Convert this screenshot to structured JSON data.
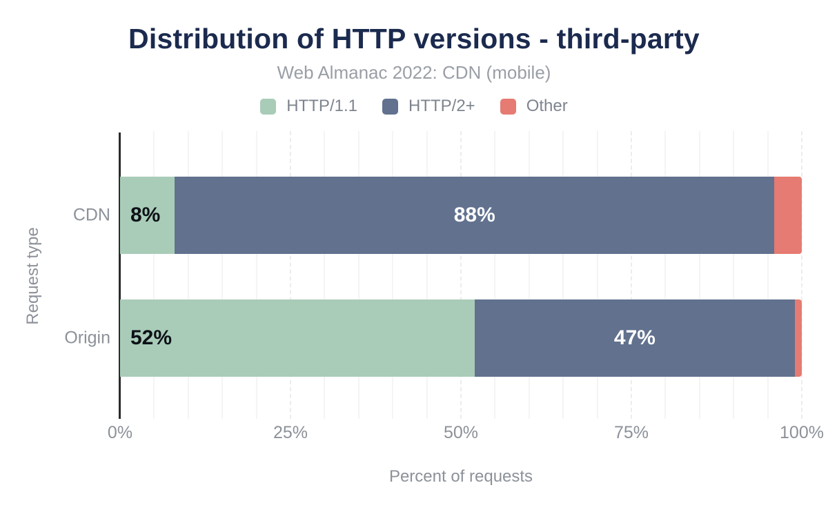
{
  "header": {
    "title": "Distribution of HTTP versions - third-party",
    "subtitle": "Web Almanac 2022: CDN (mobile)"
  },
  "legend": {
    "items": [
      {
        "label": "HTTP/1.1",
        "color": "#a9ccb8"
      },
      {
        "label": "HTTP/2+",
        "color": "#61718e"
      },
      {
        "label": "Other",
        "color": "#e57b72"
      }
    ]
  },
  "chart_data": {
    "type": "bar",
    "orientation": "horizontal",
    "stacked": true,
    "title": "Distribution of HTTP versions - third-party",
    "subtitle": "Web Almanac 2022: CDN (mobile)",
    "xlabel": "Percent of requests",
    "ylabel": "Request type",
    "xlim": [
      0,
      100
    ],
    "xtick_labels": [
      "0%",
      "25%",
      "50%",
      "75%",
      "100%"
    ],
    "xtick_values": [
      0,
      25,
      50,
      75,
      100
    ],
    "grid": {
      "minor_step": 5,
      "major_step": 25,
      "orientation": "vertical"
    },
    "legend_position": "top",
    "categories": [
      "CDN",
      "Origin"
    ],
    "series": [
      {
        "name": "HTTP/1.1",
        "color": "#a9ccb8",
        "values": [
          8,
          52
        ],
        "labels": [
          "8%",
          "52%"
        ],
        "label_color": "#0d1117",
        "label_align": "left"
      },
      {
        "name": "HTTP/2+",
        "color": "#61718e",
        "values": [
          88,
          47
        ],
        "labels": [
          "88%",
          "47%"
        ],
        "label_color": "#ffffff",
        "label_align": "center"
      },
      {
        "name": "Other",
        "color": "#e57b72",
        "values": [
          4,
          1
        ],
        "labels": [
          "",
          ""
        ],
        "label_color": "#ffffff",
        "label_align": "center"
      }
    ]
  },
  "colors": {
    "title_text": "#1b2a4e",
    "subtitle_text": "#9a9ea5",
    "axis_text": "#8c9199",
    "legend_text": "#7e848e",
    "axis_line": "#2b2b2e",
    "grid_minor": "#f4f4f6",
    "grid_major": "#ececef",
    "background": "#ffffff"
  }
}
